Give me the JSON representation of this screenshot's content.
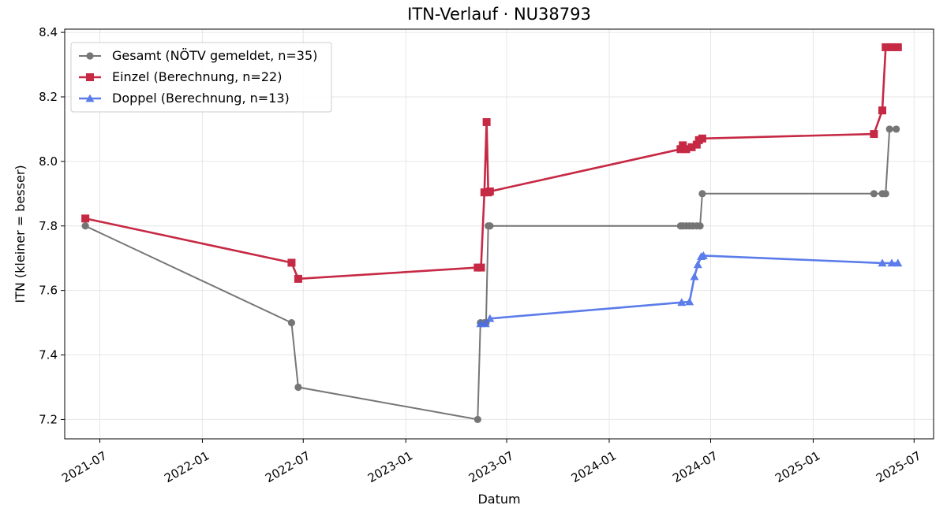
{
  "chart_data": {
    "type": "line",
    "title": "ITN-Verlauf · NU38793",
    "xlabel": "Datum",
    "ylabel": "ITN  (kleiner = besser)",
    "x_type": "date",
    "xlim": [
      "2021-04-29",
      "2025-08-05"
    ],
    "ylim": [
      7.14,
      8.41
    ],
    "x_ticks": [
      {
        "value": "2021-07-01",
        "label": "2021-07"
      },
      {
        "value": "2022-01-01",
        "label": "2022-01"
      },
      {
        "value": "2022-07-01",
        "label": "2022-07"
      },
      {
        "value": "2023-01-01",
        "label": "2023-01"
      },
      {
        "value": "2023-07-01",
        "label": "2023-07"
      },
      {
        "value": "2024-01-01",
        "label": "2024-01"
      },
      {
        "value": "2024-07-01",
        "label": "2024-07"
      },
      {
        "value": "2025-01-01",
        "label": "2025-01"
      },
      {
        "value": "2025-07-01",
        "label": "2025-07"
      }
    ],
    "y_ticks": [
      {
        "value": 7.2,
        "label": "7.2"
      },
      {
        "value": 7.4,
        "label": "7.4"
      },
      {
        "value": 7.6,
        "label": "7.6"
      },
      {
        "value": 7.8,
        "label": "7.8"
      },
      {
        "value": 8.0,
        "label": "8.0"
      },
      {
        "value": 8.2,
        "label": "8.2"
      },
      {
        "value": 8.4,
        "label": "8.4"
      }
    ],
    "grid": true,
    "legend_position": "top-left",
    "series": [
      {
        "name": "Gesamt (NÖTV gemeldet, n=35)",
        "color": "#3d3d3d",
        "marker": "circle",
        "points": [
          [
            "2021-06-05",
            7.8
          ],
          [
            "2022-06-10",
            7.5
          ],
          [
            "2022-06-22",
            7.3
          ],
          [
            "2023-05-10",
            7.2
          ],
          [
            "2023-05-15",
            7.5
          ],
          [
            "2023-05-22",
            7.5
          ],
          [
            "2023-05-25",
            7.5
          ],
          [
            "2023-05-29",
            7.8
          ],
          [
            "2023-06-01",
            7.8
          ],
          [
            "2024-05-08",
            7.8
          ],
          [
            "2024-05-12",
            7.8
          ],
          [
            "2024-05-18",
            7.8
          ],
          [
            "2024-05-24",
            7.8
          ],
          [
            "2024-05-30",
            7.8
          ],
          [
            "2024-06-06",
            7.8
          ],
          [
            "2024-06-12",
            7.8
          ],
          [
            "2024-06-16",
            7.9
          ],
          [
            "2025-04-20",
            7.9
          ],
          [
            "2025-05-05",
            7.9
          ],
          [
            "2025-05-11",
            7.9
          ],
          [
            "2025-05-18",
            8.1
          ],
          [
            "2025-05-30",
            8.1
          ]
        ]
      },
      {
        "name": "Einzel (Berechnung, n=22)",
        "color": "#c41e3a",
        "marker": "square",
        "points": [
          [
            "2021-06-05",
            7.823
          ],
          [
            "2022-06-10",
            7.686
          ],
          [
            "2022-06-22",
            7.636
          ],
          [
            "2023-05-10",
            7.671
          ],
          [
            "2023-05-16",
            7.671
          ],
          [
            "2023-05-22",
            7.904
          ],
          [
            "2023-05-26",
            8.122
          ],
          [
            "2023-05-29",
            7.904
          ],
          [
            "2023-06-01",
            7.907
          ],
          [
            "2024-05-08",
            8.038
          ],
          [
            "2024-05-12",
            8.05
          ],
          [
            "2024-05-18",
            8.038
          ],
          [
            "2024-05-28",
            8.044
          ],
          [
            "2024-06-06",
            8.052
          ],
          [
            "2024-06-10",
            8.066
          ],
          [
            "2024-06-16",
            8.071
          ],
          [
            "2025-04-20",
            8.085
          ],
          [
            "2025-05-05",
            8.158
          ],
          [
            "2025-05-11",
            8.354
          ],
          [
            "2025-05-22",
            8.354
          ],
          [
            "2025-06-02",
            8.354
          ]
        ]
      },
      {
        "name": "Doppel (Berechnung, n=13)",
        "color": "#4a6ee8",
        "marker": "triangle",
        "points": [
          [
            "2023-05-15",
            7.497
          ],
          [
            "2023-05-24",
            7.497
          ],
          [
            "2023-06-01",
            7.513
          ],
          [
            "2024-05-10",
            7.563
          ],
          [
            "2024-05-24",
            7.565
          ],
          [
            "2024-06-02",
            7.643
          ],
          [
            "2024-06-08",
            7.68
          ],
          [
            "2024-06-14",
            7.705
          ],
          [
            "2024-06-18",
            7.708
          ],
          [
            "2025-05-05",
            7.685
          ],
          [
            "2025-05-22",
            7.685
          ],
          [
            "2025-06-02",
            7.685
          ]
        ]
      }
    ]
  }
}
